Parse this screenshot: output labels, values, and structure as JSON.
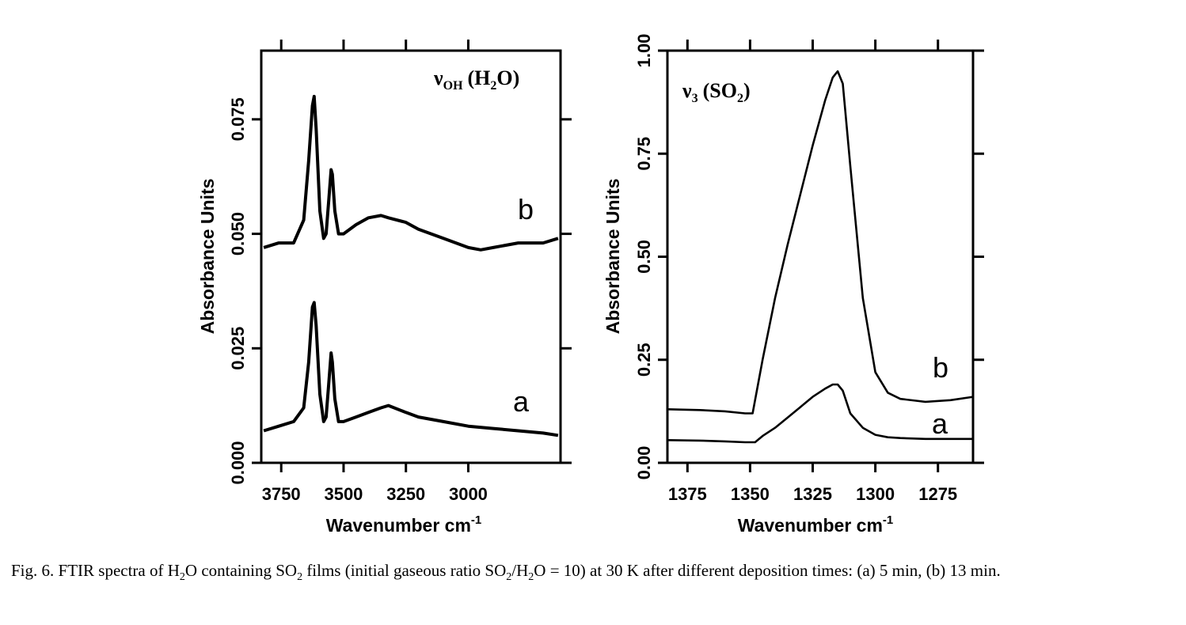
{
  "chart_data": [
    {
      "type": "line",
      "panel": "left",
      "title_main": "ν",
      "title_sub": "OH",
      "title_paren_open": "(H",
      "title_paren_sub": "2",
      "title_paren_close": "O)",
      "xlabel": "Wavenumber cm",
      "xlabel_sup": "-1",
      "ylabel": "Absorbance Units",
      "x_direction": "reversed",
      "xlim": [
        3830,
        2630
      ],
      "ylim": [
        0.0,
        0.09
      ],
      "xticks": [
        3750,
        3500,
        3250,
        3000
      ],
      "xtick_labels": [
        "3750",
        "3500",
        "3250",
        "3000"
      ],
      "yticks": [
        0.0,
        0.025,
        0.05,
        0.075
      ],
      "ytick_labels": [
        "0.000",
        "0.025",
        "0.050",
        "0.075"
      ],
      "series": [
        {
          "name": "a",
          "x": [
            3820,
            3760,
            3700,
            3660,
            3640,
            3625,
            3618,
            3610,
            3595,
            3580,
            3570,
            3560,
            3550,
            3545,
            3535,
            3520,
            3500,
            3450,
            3400,
            3350,
            3320,
            3250,
            3200,
            3100,
            3000,
            2900,
            2800,
            2700,
            2640
          ],
          "y": [
            0.007,
            0.008,
            0.009,
            0.012,
            0.022,
            0.034,
            0.035,
            0.03,
            0.015,
            0.009,
            0.01,
            0.017,
            0.024,
            0.022,
            0.014,
            0.009,
            0.009,
            0.01,
            0.011,
            0.012,
            0.0125,
            0.011,
            0.01,
            0.009,
            0.008,
            0.0075,
            0.007,
            0.0065,
            0.006
          ]
        },
        {
          "name": "b",
          "x": [
            3820,
            3760,
            3700,
            3660,
            3640,
            3625,
            3618,
            3610,
            3595,
            3580,
            3570,
            3560,
            3550,
            3545,
            3535,
            3520,
            3500,
            3450,
            3400,
            3350,
            3320,
            3250,
            3200,
            3100,
            3000,
            2950,
            2900,
            2800,
            2700,
            2640
          ],
          "y": [
            0.047,
            0.048,
            0.048,
            0.053,
            0.066,
            0.078,
            0.08,
            0.073,
            0.055,
            0.049,
            0.05,
            0.057,
            0.064,
            0.063,
            0.055,
            0.05,
            0.05,
            0.052,
            0.0535,
            0.054,
            0.0535,
            0.0525,
            0.051,
            0.049,
            0.047,
            0.0465,
            0.047,
            0.048,
            0.048,
            0.049
          ]
        }
      ]
    },
    {
      "type": "line",
      "panel": "right",
      "title_main": "ν",
      "title_sub": "3",
      "title_paren_open": "(SO",
      "title_paren_sub": "2",
      "title_paren_close": ")",
      "xlabel": "Wavenumber cm",
      "xlabel_sup": "-1",
      "ylabel": "Absorbance Units",
      "x_direction": "reversed",
      "xlim": [
        1383,
        1261
      ],
      "ylim": [
        0.0,
        1.0
      ],
      "xticks": [
        1375,
        1350,
        1325,
        1300,
        1275
      ],
      "xtick_labels": [
        "1375",
        "1350",
        "1325",
        "1300",
        "1275"
      ],
      "yticks": [
        0.0,
        0.25,
        0.5,
        0.75,
        1.0
      ],
      "ytick_labels": [
        "0.00",
        "0.25",
        "0.50",
        "0.75",
        "1.00"
      ],
      "series": [
        {
          "name": "a",
          "x": [
            1383,
            1370,
            1360,
            1352,
            1348,
            1345,
            1340,
            1335,
            1330,
            1325,
            1320,
            1317,
            1315,
            1313,
            1310,
            1305,
            1300,
            1295,
            1290,
            1280,
            1270,
            1261
          ],
          "y": [
            0.055,
            0.054,
            0.052,
            0.05,
            0.05,
            0.065,
            0.085,
            0.11,
            0.135,
            0.16,
            0.18,
            0.19,
            0.19,
            0.175,
            0.12,
            0.085,
            0.068,
            0.062,
            0.06,
            0.058,
            0.058,
            0.058
          ]
        },
        {
          "name": "b",
          "x": [
            1383,
            1370,
            1360,
            1352,
            1349,
            1345,
            1340,
            1335,
            1330,
            1325,
            1320,
            1317,
            1315,
            1313,
            1310,
            1305,
            1300,
            1295,
            1290,
            1280,
            1270,
            1261
          ],
          "y": [
            0.13,
            0.128,
            0.125,
            0.12,
            0.12,
            0.25,
            0.4,
            0.53,
            0.65,
            0.77,
            0.88,
            0.935,
            0.95,
            0.92,
            0.72,
            0.4,
            0.22,
            0.17,
            0.155,
            0.148,
            0.152,
            0.16
          ]
        }
      ]
    }
  ],
  "caption": {
    "prefix": "Fig. 6. FTIR spectra of H",
    "sub1": "2",
    "part2": "O containing SO",
    "sub2": "2",
    "part3": " films (initial gaseous ratio SO",
    "sub3": "2",
    "part4": "/H",
    "sub4": "2",
    "part5": "O = 10) at 30 K after different deposition times: (a) 5 min, (b) 13 min."
  }
}
